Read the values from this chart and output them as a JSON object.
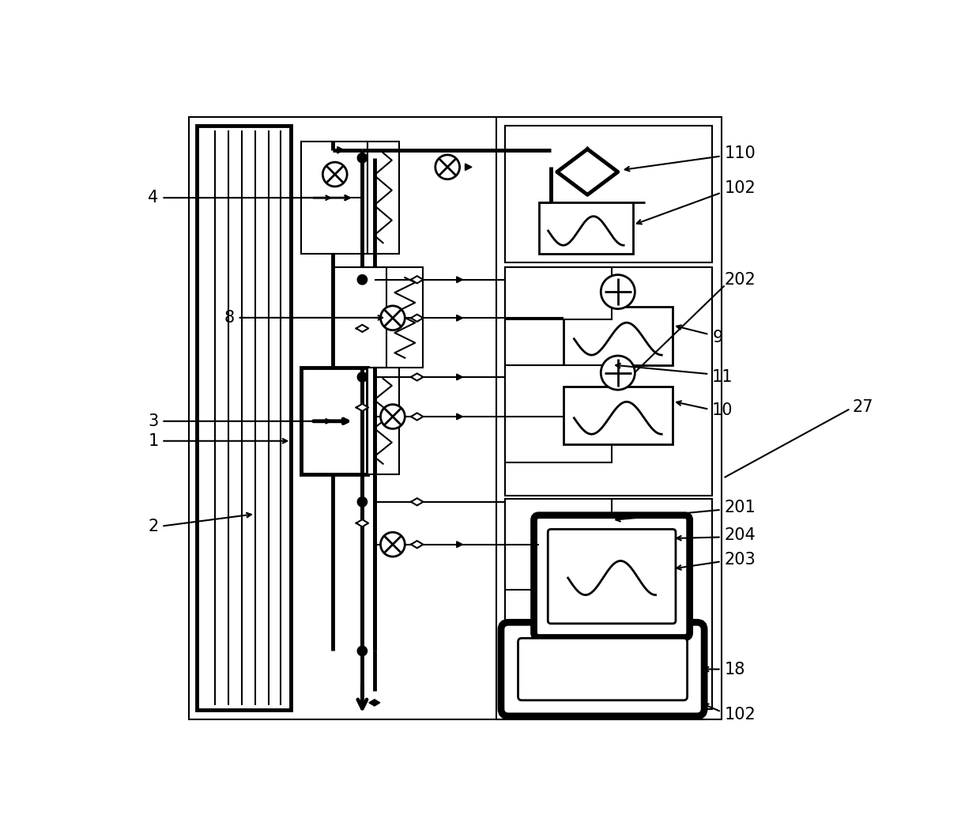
{
  "bg_color": "#ffffff",
  "line_color": "#000000",
  "lw_thick": 3.5,
  "lw_med": 2.0,
  "lw_thin": 1.5,
  "label_fontsize": 15
}
